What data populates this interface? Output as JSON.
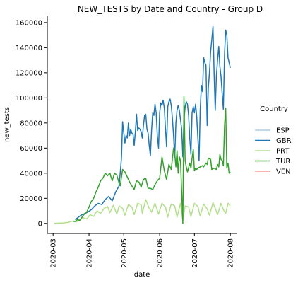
{
  "chart_data": {
    "type": "line",
    "title": "NEW_TESTS by Date and Country - Group D",
    "xlabel": "date",
    "ylabel": "new_tests",
    "xlim": [
      "2020-02-25",
      "2020-08-07"
    ],
    "ylim": [
      -8000,
      165000
    ],
    "x_ticks": [
      "2020-03",
      "2020-04",
      "2020-05",
      "2020-06",
      "2020-07",
      "2020-08"
    ],
    "y_ticks": [
      0,
      20000,
      40000,
      60000,
      80000,
      100000,
      120000,
      140000,
      160000
    ],
    "grid": false,
    "legend": {
      "title": "Country",
      "placement": "right"
    },
    "series": [
      {
        "name": "ESP",
        "color": "#a6cee3",
        "points": []
      },
      {
        "name": "GBR",
        "color": "#1f78b4",
        "points": [
          [
            "2020-03-20",
            3000
          ],
          [
            "2020-03-25",
            6500
          ],
          [
            "2020-03-31",
            9000
          ],
          [
            "2020-04-03",
            11000
          ],
          [
            "2020-04-06",
            14000
          ],
          [
            "2020-04-09",
            16000
          ],
          [
            "2020-04-12",
            15000
          ],
          [
            "2020-04-15",
            19000
          ],
          [
            "2020-04-18",
            21500
          ],
          [
            "2020-04-21",
            18000
          ],
          [
            "2020-04-24",
            25000
          ],
          [
            "2020-04-27",
            30000
          ],
          [
            "2020-04-29",
            52000
          ],
          [
            "2020-04-30",
            81000
          ],
          [
            "2020-05-01",
            72000
          ],
          [
            "2020-05-02",
            64000
          ],
          [
            "2020-05-03",
            70000
          ],
          [
            "2020-05-04",
            68000
          ],
          [
            "2020-05-05",
            80000
          ],
          [
            "2020-05-06",
            70000
          ],
          [
            "2020-05-07",
            75000
          ],
          [
            "2020-05-08",
            72000
          ],
          [
            "2020-05-09",
            71000
          ],
          [
            "2020-05-10",
            62000
          ],
          [
            "2020-05-11",
            73000
          ],
          [
            "2020-05-12",
            87000
          ],
          [
            "2020-05-13",
            74000
          ],
          [
            "2020-05-14",
            76000
          ],
          [
            "2020-05-15",
            75000
          ],
          [
            "2020-05-16",
            73000
          ],
          [
            "2020-05-17",
            68000
          ],
          [
            "2020-05-18",
            78000
          ],
          [
            "2020-05-19",
            86000
          ],
          [
            "2020-05-20",
            87000
          ],
          [
            "2020-05-21",
            75000
          ],
          [
            "2020-05-22",
            72000
          ],
          [
            "2020-05-23",
            62000
          ],
          [
            "2020-05-24",
            54000
          ],
          [
            "2020-05-25",
            74000
          ],
          [
            "2020-05-26",
            88000
          ],
          [
            "2020-05-27",
            86000
          ],
          [
            "2020-05-28",
            95000
          ],
          [
            "2020-05-29",
            88000
          ],
          [
            "2020-05-30",
            70000
          ],
          [
            "2020-05-31",
            60000
          ],
          [
            "2020-06-01",
            88000
          ],
          [
            "2020-06-02",
            96000
          ],
          [
            "2020-06-03",
            94000
          ],
          [
            "2020-06-04",
            98000
          ],
          [
            "2020-06-05",
            92000
          ],
          [
            "2020-06-06",
            76000
          ],
          [
            "2020-06-07",
            61000
          ],
          [
            "2020-06-08",
            93000
          ],
          [
            "2020-06-09",
            97000
          ],
          [
            "2020-06-10",
            99000
          ],
          [
            "2020-06-11",
            94000
          ],
          [
            "2020-06-12",
            84000
          ],
          [
            "2020-06-13",
            70000
          ],
          [
            "2020-06-14",
            52000
          ],
          [
            "2020-06-15",
            80000
          ],
          [
            "2020-06-16",
            90000
          ],
          [
            "2020-06-17",
            94000
          ],
          [
            "2020-06-18",
            90000
          ],
          [
            "2020-06-19",
            83000
          ],
          [
            "2020-06-20",
            75000
          ],
          [
            "2020-06-21",
            53000
          ],
          [
            "2020-06-22",
            82000
          ],
          [
            "2020-06-23",
            93000
          ],
          [
            "2020-06-24",
            97000
          ],
          [
            "2020-06-25",
            95000
          ],
          [
            "2020-06-26",
            86000
          ],
          [
            "2020-06-27",
            67000
          ],
          [
            "2020-06-28",
            55000
          ],
          [
            "2020-06-29",
            88000
          ],
          [
            "2020-06-30",
            93000
          ],
          [
            "2020-07-01",
            88000
          ],
          [
            "2020-07-02",
            95000
          ],
          [
            "2020-07-03",
            85000
          ],
          [
            "2020-07-04",
            68000
          ],
          [
            "2020-07-05",
            50000
          ],
          [
            "2020-07-06",
            90000
          ],
          [
            "2020-07-07",
            110000
          ],
          [
            "2020-07-08",
            105000
          ],
          [
            "2020-07-09",
            132000
          ],
          [
            "2020-07-10",
            128000
          ],
          [
            "2020-07-11",
            126000
          ],
          [
            "2020-07-12",
            78000
          ],
          [
            "2020-07-13",
            108000
          ],
          [
            "2020-07-14",
            120000
          ],
          [
            "2020-07-15",
            137000
          ],
          [
            "2020-07-16",
            146000
          ],
          [
            "2020-07-17",
            157000
          ],
          [
            "2020-07-18",
            120000
          ],
          [
            "2020-07-19",
            90000
          ],
          [
            "2020-07-20",
            118000
          ],
          [
            "2020-07-21",
            130000
          ],
          [
            "2020-07-22",
            141000
          ],
          [
            "2020-07-23",
            125000
          ],
          [
            "2020-07-24",
            117000
          ],
          [
            "2020-07-25",
            103000
          ],
          [
            "2020-07-26",
            91000
          ],
          [
            "2020-07-27",
            135000
          ],
          [
            "2020-07-28",
            154000
          ],
          [
            "2020-07-29",
            150000
          ],
          [
            "2020-07-30",
            132000
          ],
          [
            "2020-07-31",
            128000
          ],
          [
            "2020-08-01",
            124000
          ]
        ]
      },
      {
        "name": "PRT",
        "color": "#b2df8a",
        "points": [
          [
            "2020-03-02",
            100
          ],
          [
            "2020-03-06",
            200
          ],
          [
            "2020-03-10",
            400
          ],
          [
            "2020-03-14",
            900
          ],
          [
            "2020-03-18",
            1800
          ],
          [
            "2020-03-21",
            1200
          ],
          [
            "2020-03-24",
            3000
          ],
          [
            "2020-03-27",
            4500
          ],
          [
            "2020-03-30",
            3500
          ],
          [
            "2020-04-02",
            7000
          ],
          [
            "2020-04-05",
            5500
          ],
          [
            "2020-04-08",
            10000
          ],
          [
            "2020-04-11",
            8000
          ],
          [
            "2020-04-14",
            12000
          ],
          [
            "2020-04-17",
            13500
          ],
          [
            "2020-04-19",
            8500
          ],
          [
            "2020-04-22",
            14500
          ],
          [
            "2020-04-25",
            7500
          ],
          [
            "2020-04-27",
            14000
          ],
          [
            "2020-04-30",
            12000
          ],
          [
            "2020-05-02",
            6500
          ],
          [
            "2020-05-05",
            15000
          ],
          [
            "2020-05-08",
            13000
          ],
          [
            "2020-05-10",
            7000
          ],
          [
            "2020-05-13",
            16000
          ],
          [
            "2020-05-16",
            15000
          ],
          [
            "2020-05-17",
            8000
          ],
          [
            "2020-05-20",
            19000
          ],
          [
            "2020-05-23",
            12000
          ],
          [
            "2020-05-25",
            9000
          ],
          [
            "2020-05-28",
            16000
          ],
          [
            "2020-05-31",
            7500
          ],
          [
            "2020-06-03",
            16000
          ],
          [
            "2020-06-06",
            13000
          ],
          [
            "2020-06-08",
            5000
          ],
          [
            "2020-06-11",
            15500
          ],
          [
            "2020-06-14",
            14000
          ],
          [
            "2020-06-16",
            5000
          ],
          [
            "2020-06-19",
            16000
          ],
          [
            "2020-06-21",
            2500
          ],
          [
            "2020-06-23",
            14000
          ],
          [
            "2020-06-26",
            13000
          ],
          [
            "2020-06-28",
            5500
          ],
          [
            "2020-07-01",
            16000
          ],
          [
            "2020-07-04",
            13500
          ],
          [
            "2020-07-06",
            6000
          ],
          [
            "2020-07-09",
            15500
          ],
          [
            "2020-07-12",
            11500
          ],
          [
            "2020-07-14",
            6500
          ],
          [
            "2020-07-17",
            16500
          ],
          [
            "2020-07-19",
            12000
          ],
          [
            "2020-07-21",
            7000
          ],
          [
            "2020-07-24",
            16000
          ],
          [
            "2020-07-26",
            11000
          ],
          [
            "2020-07-28",
            8000
          ],
          [
            "2020-07-30",
            16000
          ],
          [
            "2020-08-01",
            14000
          ]
        ]
      },
      {
        "name": "TUR",
        "color": "#33a02c",
        "points": [
          [
            "2020-03-18",
            2000
          ],
          [
            "2020-03-20",
            1500
          ],
          [
            "2020-03-22",
            3000
          ],
          [
            "2020-03-24",
            2500
          ],
          [
            "2020-03-26",
            5000
          ],
          [
            "2020-03-28",
            7500
          ],
          [
            "2020-03-30",
            9000
          ],
          [
            "2020-04-01",
            13000
          ],
          [
            "2020-04-03",
            17500
          ],
          [
            "2020-04-05",
            20000
          ],
          [
            "2020-04-07",
            25000
          ],
          [
            "2020-04-09",
            29000
          ],
          [
            "2020-04-11",
            34000
          ],
          [
            "2020-04-13",
            36000
          ],
          [
            "2020-04-15",
            40000
          ],
          [
            "2020-04-17",
            38000
          ],
          [
            "2020-04-19",
            40000
          ],
          [
            "2020-04-21",
            34000
          ],
          [
            "2020-04-23",
            40000
          ],
          [
            "2020-04-25",
            38500
          ],
          [
            "2020-04-27",
            32000
          ],
          [
            "2020-04-28",
            30000
          ],
          [
            "2020-04-30",
            43000
          ],
          [
            "2020-05-02",
            41000
          ],
          [
            "2020-05-04",
            37000
          ],
          [
            "2020-05-06",
            33000
          ],
          [
            "2020-05-08",
            30000
          ],
          [
            "2020-05-10",
            27000
          ],
          [
            "2020-05-12",
            34000
          ],
          [
            "2020-05-14",
            33000
          ],
          [
            "2020-05-16",
            29000
          ],
          [
            "2020-05-18",
            35000
          ],
          [
            "2020-05-20",
            36000
          ],
          [
            "2020-05-22",
            28000
          ],
          [
            "2020-05-24",
            28000
          ],
          [
            "2020-05-26",
            27000
          ],
          [
            "2020-05-28",
            31000
          ],
          [
            "2020-05-30",
            34000
          ],
          [
            "2020-06-01",
            36000
          ],
          [
            "2020-06-03",
            53000
          ],
          [
            "2020-06-05",
            42000
          ],
          [
            "2020-06-07",
            35000
          ],
          [
            "2020-06-09",
            47000
          ],
          [
            "2020-06-11",
            43000
          ],
          [
            "2020-06-13",
            60000
          ],
          [
            "2020-06-14",
            56000
          ],
          [
            "2020-06-15",
            45000
          ],
          [
            "2020-06-16",
            58000
          ],
          [
            "2020-06-17",
            40000
          ],
          [
            "2020-06-18",
            53000
          ],
          [
            "2020-06-19",
            50000
          ],
          [
            "2020-06-20",
            25000
          ],
          [
            "2020-06-21",
            0
          ],
          [
            "2020-06-22",
            101000
          ],
          [
            "2020-06-23",
            50000
          ],
          [
            "2020-06-24",
            45000
          ],
          [
            "2020-06-25",
            41000
          ],
          [
            "2020-06-27",
            48000
          ],
          [
            "2020-06-28",
            44000
          ],
          [
            "2020-06-29",
            52000
          ],
          [
            "2020-06-30",
            59000
          ],
          [
            "2020-07-01",
            42000
          ],
          [
            "2020-07-02",
            44000
          ],
          [
            "2020-07-03",
            43000
          ],
          [
            "2020-07-04",
            44000
          ],
          [
            "2020-07-06",
            45000
          ],
          [
            "2020-07-08",
            46000
          ],
          [
            "2020-07-09",
            45000
          ],
          [
            "2020-07-11",
            48000
          ],
          [
            "2020-07-12",
            47000
          ],
          [
            "2020-07-13",
            52000
          ],
          [
            "2020-07-15",
            51000
          ],
          [
            "2020-07-16",
            43000
          ],
          [
            "2020-07-18",
            44000
          ],
          [
            "2020-07-20",
            43000
          ],
          [
            "2020-07-21",
            47000
          ],
          [
            "2020-07-22",
            45000
          ],
          [
            "2020-07-23",
            55000
          ],
          [
            "2020-07-24",
            51000
          ],
          [
            "2020-07-25",
            50000
          ],
          [
            "2020-07-26",
            46000
          ],
          [
            "2020-07-27",
            78000
          ],
          [
            "2020-07-28",
            92000
          ],
          [
            "2020-07-29",
            44000
          ],
          [
            "2020-07-30",
            48000
          ],
          [
            "2020-07-31",
            40000
          ],
          [
            "2020-08-01",
            41000
          ]
        ]
      },
      {
        "name": "VEN",
        "color": "#fb9a99",
        "points": []
      }
    ]
  }
}
